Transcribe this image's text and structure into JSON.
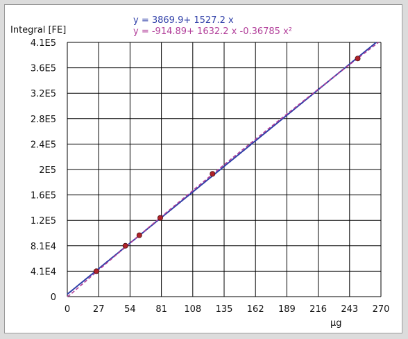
{
  "chart_data": {
    "type": "scatter",
    "title": "",
    "ylabel": "Integral [FE]",
    "xlabel": "µg",
    "equations": [
      "y = 3869.9+ 1527.2 x",
      "y = -914.89+ 1632.2 x -0.36785 x²"
    ],
    "xlim": [
      0,
      270
    ],
    "ylim": [
      0,
      410000
    ],
    "x_ticks": [
      "0",
      "27",
      "54",
      "81",
      "108",
      "135",
      "162",
      "189",
      "216",
      "243",
      "270"
    ],
    "y_ticks": [
      "0",
      "4.1E4",
      "8.1E4",
      "1.2E5",
      "1.6E5",
      "2E5",
      "2.4E5",
      "2.8E5",
      "3.2E5",
      "3.6E5",
      "4.1E5"
    ],
    "grid": true,
    "series": [
      {
        "values": [
          [
            25,
            41000
          ],
          [
            50,
            82000
          ],
          [
            62,
            99000
          ],
          [
            80,
            127000
          ],
          [
            125,
            198000
          ],
          [
            250,
            384000
          ]
        ]
      }
    ],
    "fits": [
      {
        "kind": "linear",
        "coefficients": [
          3869.9,
          1527.2
        ],
        "color": "#2f3fa8"
      },
      {
        "kind": "quadratic",
        "coefficients": [
          -914.89,
          1632.2,
          -0.36785
        ],
        "color": "#b23f9a"
      }
    ],
    "marker_color": "#b0222a"
  }
}
